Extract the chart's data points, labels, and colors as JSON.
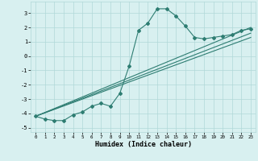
{
  "x": [
    0,
    1,
    2,
    3,
    4,
    5,
    6,
    7,
    8,
    9,
    10,
    11,
    12,
    13,
    14,
    15,
    16,
    17,
    18,
    19,
    20,
    21,
    22,
    23
  ],
  "line1": [
    -4.2,
    -4.4,
    -4.5,
    -4.5,
    -4.1,
    -3.9,
    -3.5,
    -3.3,
    -3.5,
    -2.6,
    -0.7,
    1.8,
    2.3,
    3.3,
    3.3,
    2.8,
    2.1,
    1.3,
    1.2,
    1.3,
    1.4,
    1.5,
    1.8,
    1.9
  ],
  "line2_x": [
    0,
    23
  ],
  "line2_y": [
    -4.2,
    2.0
  ],
  "line3_x": [
    0,
    23
  ],
  "line3_y": [
    -4.2,
    1.6
  ],
  "line4_x": [
    0,
    23
  ],
  "line4_y": [
    -4.2,
    1.3
  ],
  "color": "#2e7d72",
  "bg_color": "#d8f0f0",
  "grid_color": "#b0d8d8",
  "xlabel": "Humidex (Indice chaleur)",
  "xlim": [
    -0.5,
    23.5
  ],
  "ylim": [
    -5.3,
    3.8
  ],
  "yticks": [
    -5,
    -4,
    -3,
    -2,
    -1,
    0,
    1,
    2,
    3
  ],
  "xticks": [
    0,
    1,
    2,
    3,
    4,
    5,
    6,
    7,
    8,
    9,
    10,
    11,
    12,
    13,
    14,
    15,
    16,
    17,
    18,
    19,
    20,
    21,
    22,
    23
  ]
}
